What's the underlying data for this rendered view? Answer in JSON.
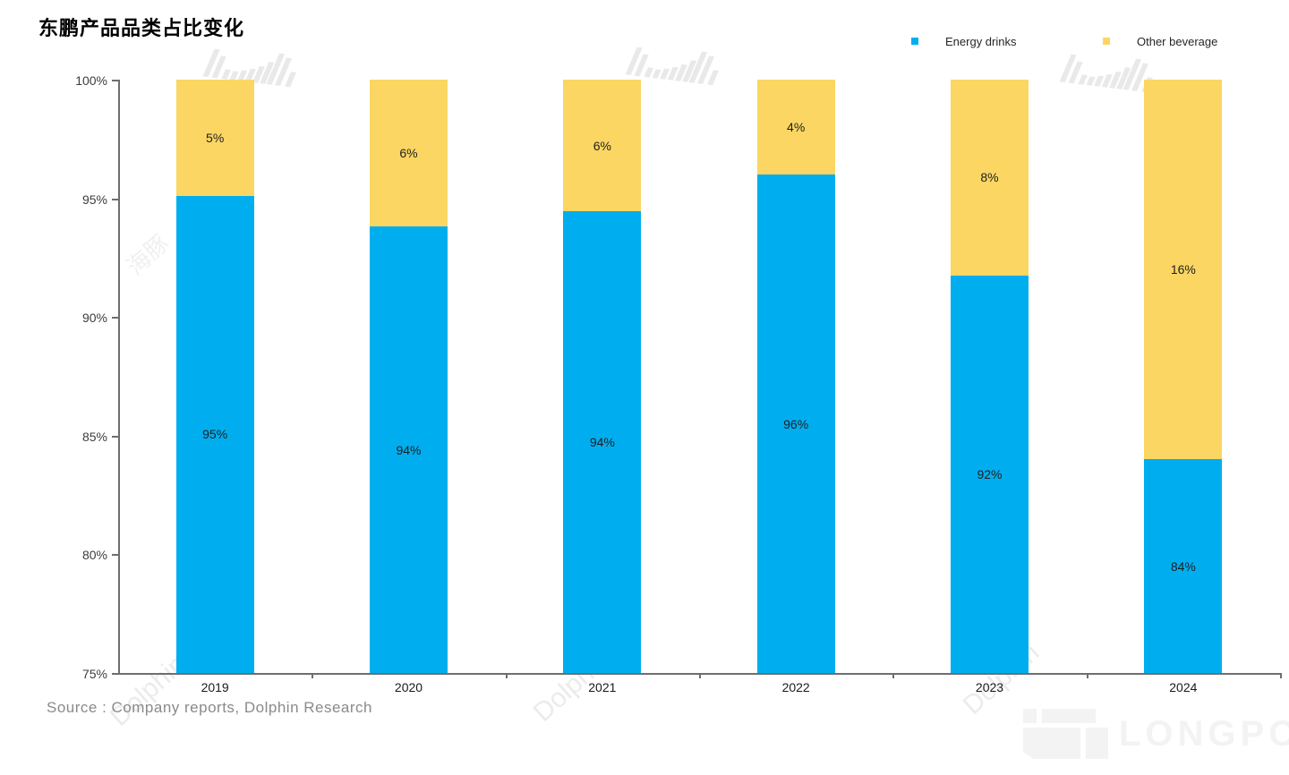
{
  "title": "东鹏产品品类占比变化",
  "legend": [
    {
      "label": "Energy drinks",
      "color": "#00AEEF"
    },
    {
      "label": "Other beverage",
      "color": "#FBD663"
    }
  ],
  "source": "Source : Company reports, Dolphin Research",
  "watermark": {
    "brand_text": "Dolphin",
    "cjk_text": "海豚",
    "logo_text": "LONGPORT"
  },
  "chart_data": {
    "type": "bar",
    "stacked": true,
    "title": "东鹏产品品类占比变化",
    "categories": [
      "2019",
      "2020",
      "2021",
      "2022",
      "2023",
      "2024"
    ],
    "series": [
      {
        "name": "Energy drinks",
        "color": "#00AEEF",
        "values": [
          95,
          94,
          94,
          96,
          92,
          84
        ],
        "labels": [
          "95%",
          "94%",
          "94%",
          "96%",
          "92%",
          "84%"
        ],
        "precise_top": [
          95.1,
          93.8,
          94.45,
          96.0,
          91.75,
          84.0
        ]
      },
      {
        "name": "Other beverage",
        "color": "#FBD663",
        "values": [
          5,
          6,
          6,
          4,
          8,
          16
        ],
        "labels": [
          "5%",
          "6%",
          "6%",
          "4%",
          "8%",
          "16%"
        ]
      }
    ],
    "ylim": [
      75,
      100
    ],
    "y_tick_step": 5,
    "y_tick_labels": [
      "100%",
      "95%",
      "90%",
      "85%",
      "80%",
      "75%"
    ],
    "xlabel": "",
    "ylabel": "",
    "grid": false,
    "legend_position": "top-right"
  }
}
